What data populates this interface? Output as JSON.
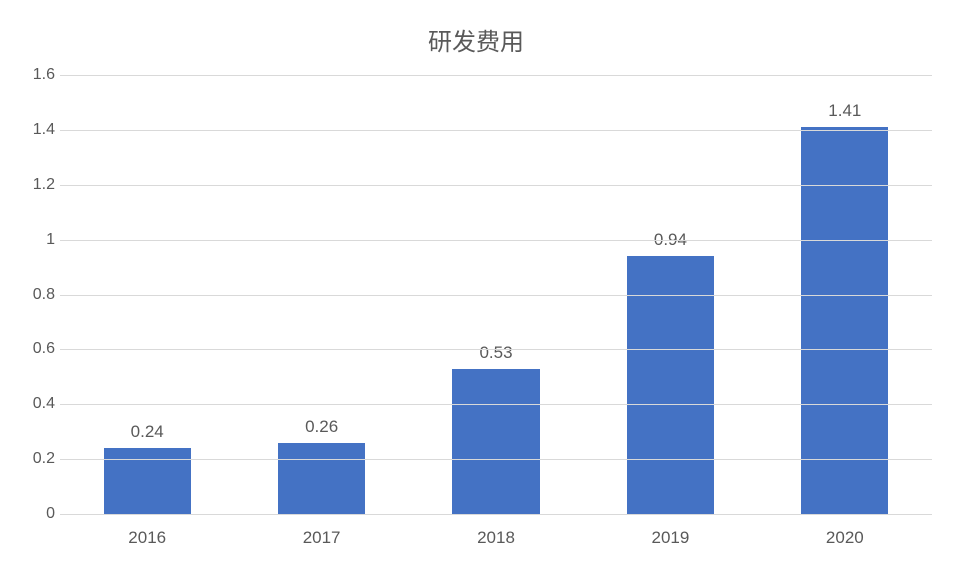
{
  "chart": {
    "type": "bar",
    "title": "研发费用",
    "title_fontsize": 24,
    "title_color": "#595959",
    "categories": [
      "2016",
      "2017",
      "2018",
      "2019",
      "2020"
    ],
    "values": [
      0.24,
      0.26,
      0.53,
      0.94,
      1.41
    ],
    "value_labels": [
      "0.24",
      "0.26",
      "0.53",
      "0.94",
      "1.41"
    ],
    "bar_color": "#4472c4",
    "bar_width": 0.5,
    "ylim": [
      0,
      1.6
    ],
    "ytick_step": 0.2,
    "yticks": [
      "0",
      "0.2",
      "0.4",
      "0.6",
      "0.8",
      "1",
      "1.2",
      "1.4",
      "1.6"
    ],
    "grid_color": "#d9d9d9",
    "background_color": "#ffffff",
    "text_color": "#595959",
    "label_fontsize": 17,
    "tick_fontsize": 16,
    "font_family": "Microsoft YaHei"
  }
}
